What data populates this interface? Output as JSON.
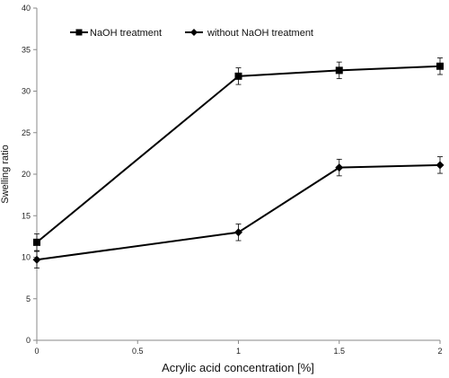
{
  "chart_data": {
    "type": "line",
    "title": "",
    "xlabel": "Acrylic acid concentration [%]",
    "ylabel": "Swelling ratio",
    "xlim": [
      0,
      2
    ],
    "ylim": [
      0,
      40
    ],
    "x_ticks": [
      "0",
      "0.5",
      "1",
      "1.5",
      "2"
    ],
    "y_ticks": [
      "0",
      "5",
      "10",
      "15",
      "20",
      "25",
      "30",
      "35",
      "40"
    ],
    "grid": false,
    "legend_position": "top",
    "series": [
      {
        "name": "NaOH treatment",
        "marker": "square",
        "color": "#000000",
        "x": [
          0,
          1,
          1.5,
          2
        ],
        "y": [
          11.8,
          31.8,
          32.5,
          33.0
        ],
        "error": [
          1.0,
          1.0,
          1.0,
          1.0
        ]
      },
      {
        "name": "without NaOH treatment",
        "marker": "diamond",
        "color": "#000000",
        "x": [
          0,
          1,
          1.5,
          2
        ],
        "y": [
          9.7,
          13.0,
          20.8,
          21.1
        ],
        "error": [
          1.0,
          1.0,
          1.0,
          1.0
        ]
      }
    ]
  }
}
